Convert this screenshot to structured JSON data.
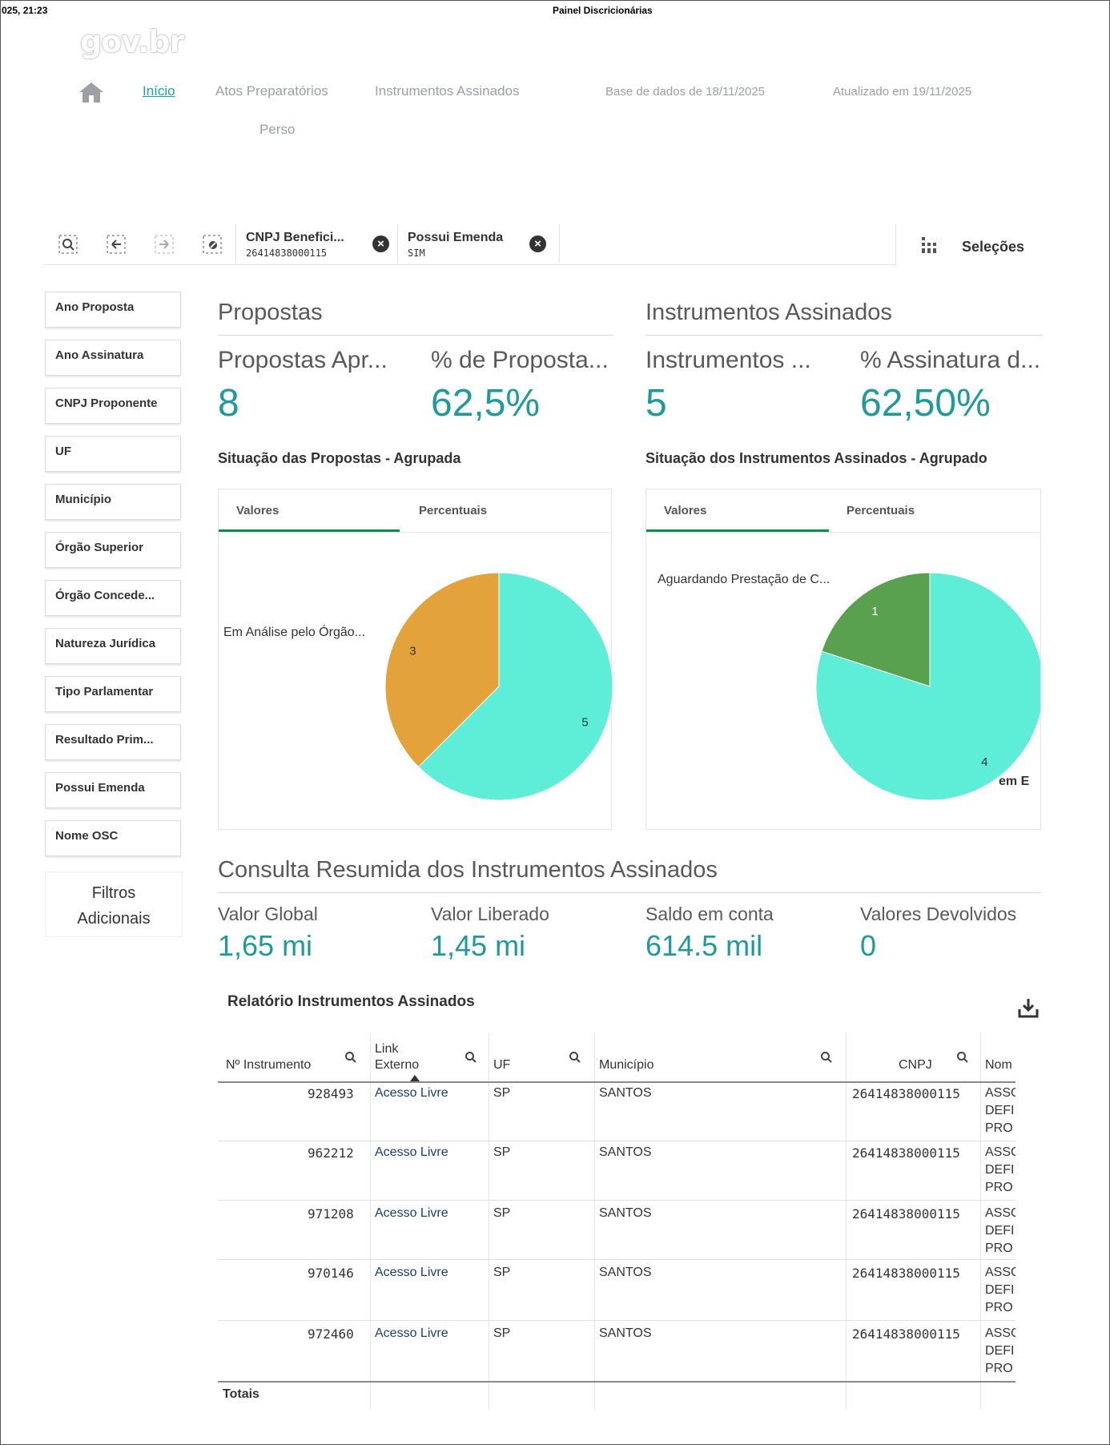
{
  "print_header": {
    "timestamp": "025, 21:23",
    "title": "Painel Discricionárias"
  },
  "logo": {
    "text": "gov.br"
  },
  "nav": {
    "items": [
      {
        "label": "Início",
        "active": true
      },
      {
        "label": "Atos Preparatórios"
      },
      {
        "label": "Instrumentos Assinados"
      }
    ],
    "database_date": "Base de dados de 18/11/2025",
    "updated_date": "Atualizado em 19/11/2025",
    "sub_item": "Perso"
  },
  "toolbar": {
    "chips": [
      {
        "label": "CNPJ Benefici...",
        "value": "26414838000115"
      },
      {
        "label": "Possui Emenda",
        "value": "SIM"
      }
    ],
    "selections_label": "Seleções"
  },
  "filters": {
    "items": [
      "Ano Proposta",
      "Ano Assinatura",
      "CNPJ Proponente",
      "UF",
      "Município",
      "Órgão Superior",
      "Órgão Concede...",
      "Natureza Jurídica",
      "Tipo Parlamentar",
      "Resultado Prim...",
      "Possui Emenda",
      "Nome OSC"
    ],
    "additional": [
      "Filtros",
      "Adicionais"
    ]
  },
  "propostas": {
    "title": "Propostas",
    "kpi1_label": "Propostas Apr...",
    "kpi1_value": "8",
    "kpi2_label": "% de Proposta...",
    "kpi2_value": "62,5%",
    "chart_title": "Situação das Propostas - Agrupada",
    "tabs": [
      "Valores",
      "Percentuais"
    ],
    "slice_label": "Em Análise pelo Órgão..."
  },
  "instrumentos": {
    "title": "Instrumentos Assinados",
    "kpi1_label": "Instrumentos ...",
    "kpi1_value": "5",
    "kpi2_label": "% Assinatura d...",
    "kpi2_value": "62,50%",
    "chart_title": "Situação dos Instrumentos Assinados - Agrupado",
    "tabs": [
      "Valores",
      "Percentuais"
    ],
    "slice_label_top": "Aguardando Prestação de C...",
    "slice_label_bottom": "em E"
  },
  "chart_data": [
    {
      "type": "pie",
      "title": "Situação das Propostas - Agrupada",
      "series": [
        {
          "name": "Em Análise pelo Órgão...",
          "value": 3,
          "color": "#e4a33a"
        },
        {
          "name": "",
          "value": 5,
          "color": "#5eedd6"
        }
      ]
    },
    {
      "type": "pie",
      "title": "Situação dos Instrumentos Assinados - Agrupado",
      "series": [
        {
          "name": "Aguardando Prestação de C...",
          "value": 1,
          "color": "#59a14f"
        },
        {
          "name": "em E",
          "value": 4,
          "color": "#5eedd6"
        }
      ]
    }
  ],
  "consulta": {
    "title": "Consulta Resumida dos Instrumentos Assinados",
    "kpis": [
      {
        "label": "Valor Global",
        "value": "1,65 mi"
      },
      {
        "label": "Valor Liberado",
        "value": "1,45 mi"
      },
      {
        "label": "Saldo em conta",
        "value": "614.5 mil"
      },
      {
        "label": "Valores Devolvidos",
        "value": "0"
      }
    ]
  },
  "report": {
    "title": "Relatório Instrumentos Assinados",
    "columns": [
      "Nº Instrumento",
      "Link Externo",
      "UF",
      "Município",
      "CNPJ",
      "Nom"
    ],
    "rows": [
      {
        "numero": "928493",
        "link": "Acesso Livre",
        "uf": "SP",
        "municipio": "SANTOS",
        "cnpj": "26414838000115",
        "nome": "ASSO\nDEFI\nPRO"
      },
      {
        "numero": "962212",
        "link": "Acesso Livre",
        "uf": "SP",
        "municipio": "SANTOS",
        "cnpj": "26414838000115",
        "nome": "ASSO\nDEFI\nPRO"
      },
      {
        "numero": "971208",
        "link": "Acesso Livre",
        "uf": "SP",
        "municipio": "SANTOS",
        "cnpj": "26414838000115",
        "nome": "ASSO\nDEFI\nPRO"
      },
      {
        "numero": "970146",
        "link": "Acesso Livre",
        "uf": "SP",
        "municipio": "SANTOS",
        "cnpj": "26414838000115",
        "nome": "ASSO\nDEFI\nPRO"
      },
      {
        "numero": "972460",
        "link": "Acesso Livre",
        "uf": "SP",
        "municipio": "SANTOS",
        "cnpj": "26414838000115",
        "nome": "ASSO\nDEFI\nPRO"
      }
    ],
    "totals_label": "Totais"
  }
}
